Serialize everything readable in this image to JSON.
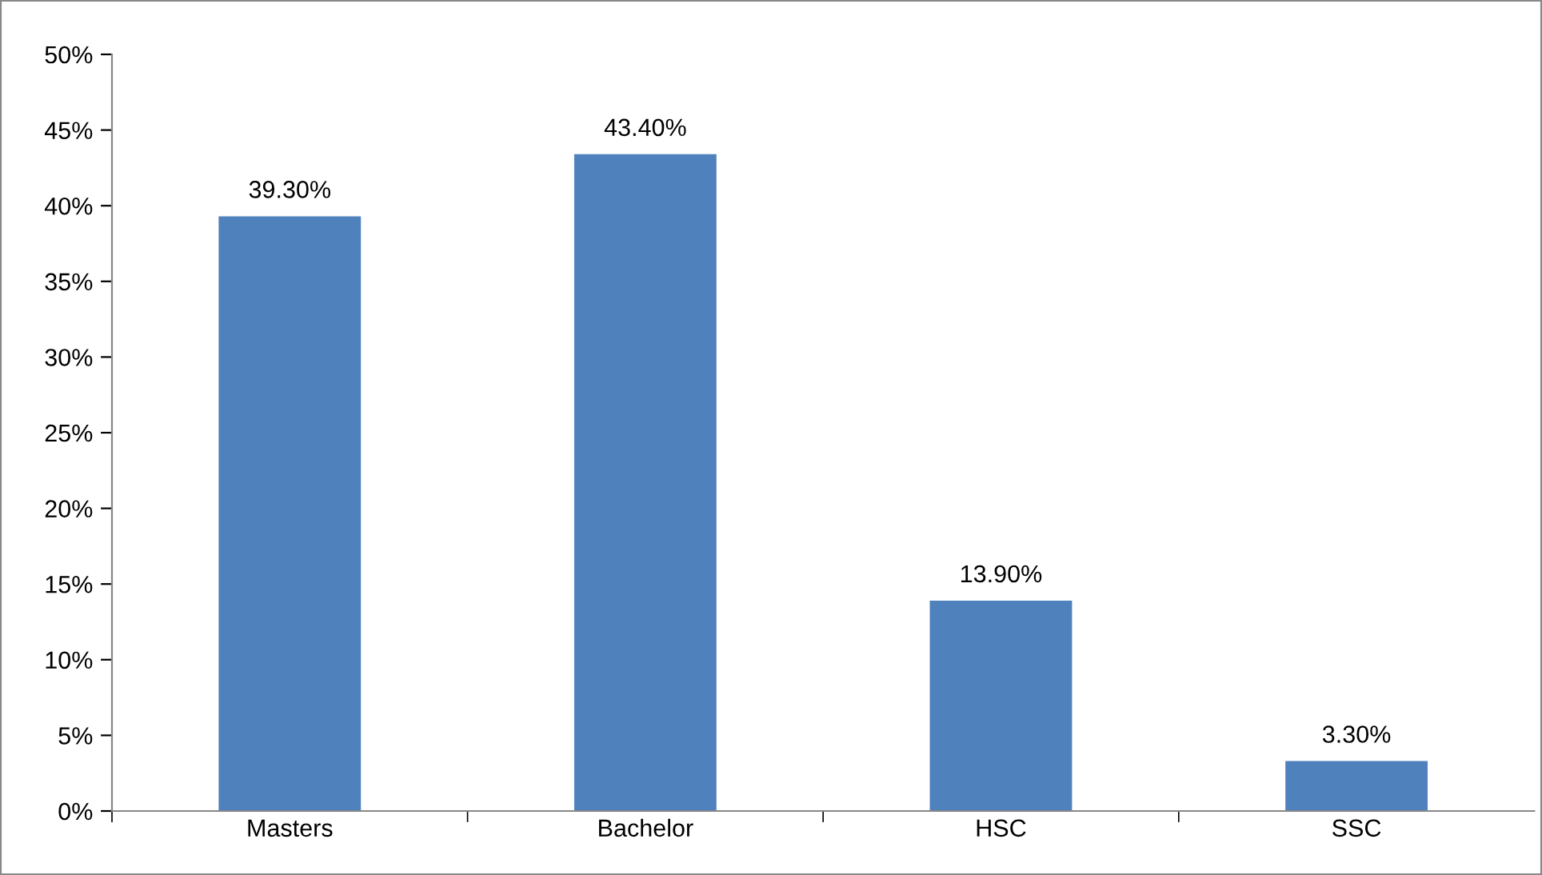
{
  "chart_data": {
    "type": "bar",
    "categories": [
      "Masters",
      "Bachelor",
      "HSC",
      "SSC"
    ],
    "values": [
      39.3,
      43.4,
      13.9,
      3.3
    ],
    "value_labels": [
      "39.30%",
      "43.40%",
      "13.90%",
      "3.30%"
    ],
    "color": "#4f81bd",
    "ylim": [
      0,
      50
    ],
    "yticks": [
      {
        "value": 0,
        "label": "0%"
      },
      {
        "value": 5,
        "label": "5%"
      },
      {
        "value": 10,
        "label": "10%"
      },
      {
        "value": 15,
        "label": "15%"
      },
      {
        "value": 20,
        "label": "20%"
      },
      {
        "value": 25,
        "label": "25%"
      },
      {
        "value": 30,
        "label": "30%"
      },
      {
        "value": 35,
        "label": "35%"
      },
      {
        "value": 40,
        "label": "40%"
      },
      {
        "value": 45,
        "label": "45%"
      },
      {
        "value": 50,
        "label": "50%"
      }
    ],
    "grid": false,
    "legend": false
  }
}
